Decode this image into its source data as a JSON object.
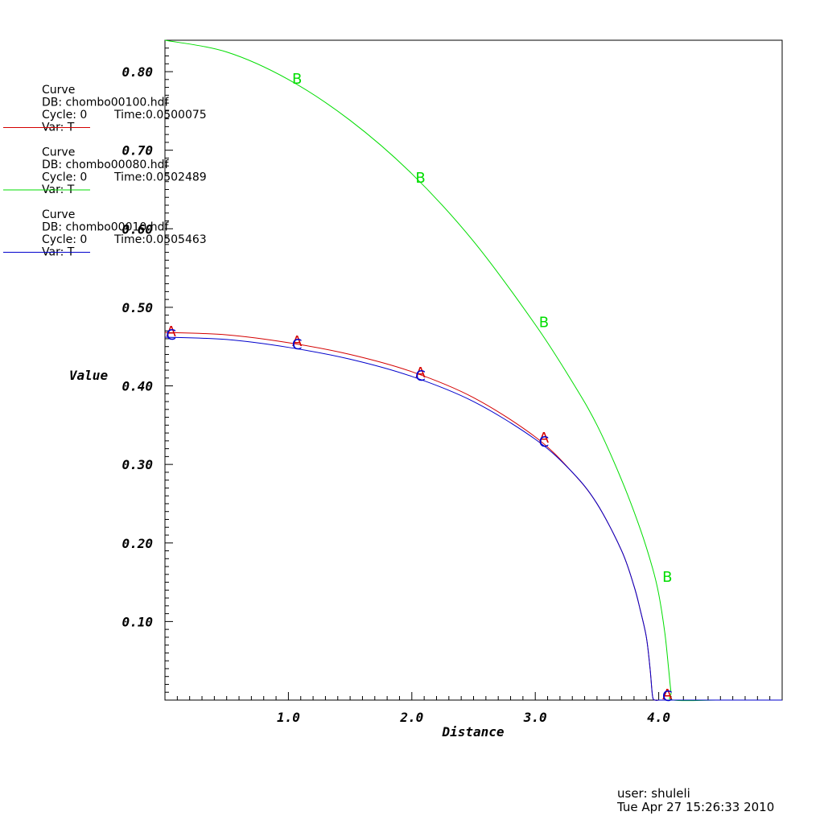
{
  "chart_data": {
    "type": "line",
    "xlabel": "Distance",
    "ylabel": "Value",
    "xlim": [
      0,
      5.0
    ],
    "ylim": [
      0,
      0.84
    ],
    "x_ticks": [
      "1.0",
      "2.0",
      "3.0",
      "4.0"
    ],
    "x_tick_values": [
      1.0,
      2.0,
      3.0,
      4.0
    ],
    "y_ticks": [
      "0.10",
      "0.20",
      "0.30",
      "0.40",
      "0.50",
      "0.60",
      "0.70",
      "0.80"
    ],
    "y_tick_values": [
      0.1,
      0.2,
      0.3,
      0.4,
      0.5,
      0.6,
      0.7,
      0.8
    ],
    "grid": false,
    "series": [
      {
        "name": "Curve",
        "db": "DB: chombo00100.hdf",
        "cycle": "Cycle: 0",
        "time": "Time:0.0500075",
        "var": "Var: T",
        "color": "#d40000",
        "marker": "A",
        "x": [
          0,
          0.5,
          1.0,
          1.5,
          2.0,
          2.5,
          3.0,
          3.3,
          3.5,
          3.7,
          3.8,
          3.85,
          3.9,
          3.93,
          3.95,
          3.97,
          4.0,
          4.05,
          4.1,
          4.5,
          5.0
        ],
        "y": [
          0.468,
          0.465,
          0.455,
          0.44,
          0.418,
          0.385,
          0.335,
          0.29,
          0.25,
          0.19,
          0.145,
          0.115,
          0.08,
          0.04,
          0.005,
          0.0,
          0.0,
          0.0,
          0.0,
          0.0,
          0.0
        ],
        "marker_x": [
          0.05,
          1.07,
          2.07,
          3.07,
          4.07
        ],
        "marker_y": [
          0.47,
          0.458,
          0.418,
          0.335,
          0.008
        ]
      },
      {
        "name": "Curve",
        "db": "DB: chombo00080.hdf",
        "cycle": "Cycle: 0",
        "time": "Time:0.0502489",
        "var": "Var: T",
        "color": "#00dd00",
        "marker": "B",
        "x": [
          0,
          0.5,
          1.0,
          1.5,
          2.0,
          2.5,
          3.0,
          3.3,
          3.5,
          3.7,
          3.85,
          3.95,
          4.0,
          4.05,
          4.08,
          4.1,
          4.12,
          4.5,
          5.0
        ],
        "y": [
          0.84,
          0.825,
          0.79,
          0.738,
          0.67,
          0.584,
          0.478,
          0.405,
          0.35,
          0.28,
          0.218,
          0.168,
          0.135,
          0.085,
          0.04,
          0.01,
          0.0,
          0.0,
          0.0
        ],
        "marker_x": [
          1.07,
          2.07,
          3.07,
          4.07
        ],
        "marker_y": [
          0.792,
          0.666,
          0.482,
          0.158
        ]
      },
      {
        "name": "Curve",
        "db": "DB: chombo00010.hdf",
        "cycle": "Cycle: 0",
        "time": "Time:0.0505463",
        "var": "Var: T",
        "color": "#0000cc",
        "marker": "C",
        "x": [
          0,
          0.5,
          1.0,
          1.5,
          2.0,
          2.5,
          3.0,
          3.3,
          3.5,
          3.7,
          3.8,
          3.85,
          3.9,
          3.93,
          3.95,
          3.97,
          4.0,
          4.05,
          4.1,
          4.5,
          5.0
        ],
        "y": [
          0.462,
          0.459,
          0.449,
          0.434,
          0.412,
          0.38,
          0.332,
          0.29,
          0.25,
          0.19,
          0.145,
          0.115,
          0.08,
          0.04,
          0.005,
          0.0,
          0.0,
          0.0,
          0.0,
          0.0,
          0.0
        ],
        "marker_x": [
          0.05,
          1.07,
          2.07,
          3.07,
          4.07
        ],
        "marker_y": [
          0.466,
          0.454,
          0.414,
          0.33,
          0.006
        ]
      }
    ]
  },
  "footer": {
    "user": "user: shuleli",
    "timestamp": "Tue Apr 27 15:26:33 2010"
  }
}
